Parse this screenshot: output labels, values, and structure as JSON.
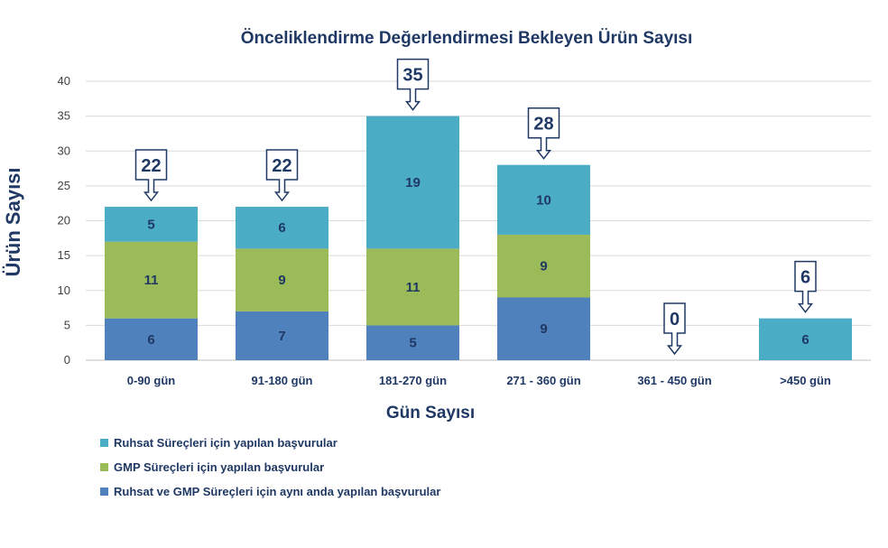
{
  "chart_data": {
    "type": "bar",
    "stacked": true,
    "title": "Önceliklendirme Değerlendirmesi Bekleyen Ürün Sayısı",
    "xlabel": "Gün Sayısı",
    "ylabel": "Ürün Sayısı",
    "ylim": [
      0,
      40
    ],
    "yticks": [
      0,
      5,
      10,
      15,
      20,
      25,
      30,
      35,
      40
    ],
    "grid": true,
    "legend_position": "bottom-left",
    "categories": [
      "0-90 gün",
      "91-180 gün",
      "181-270 gün",
      "271 - 360 gün",
      "361 - 450 gün",
      ">450 gün"
    ],
    "series": [
      {
        "name": "Ruhsat ve GMP Süreçleri için aynı anda yapılan başvurular",
        "color": "#4F81BD",
        "values": [
          6,
          7,
          5,
          9,
          0,
          0
        ]
      },
      {
        "name": "GMP Süreçleri için yapılan başvurular",
        "color": "#9BBB59",
        "values": [
          11,
          9,
          11,
          9,
          0,
          0
        ]
      },
      {
        "name": "Ruhsat Süreçleri için yapılan başvurular",
        "color": "#4BACC6",
        "values": [
          5,
          6,
          19,
          10,
          0,
          6
        ]
      }
    ],
    "totals": [
      22,
      22,
      35,
      28,
      0,
      6
    ],
    "legend_order": [
      2,
      1,
      0
    ]
  }
}
